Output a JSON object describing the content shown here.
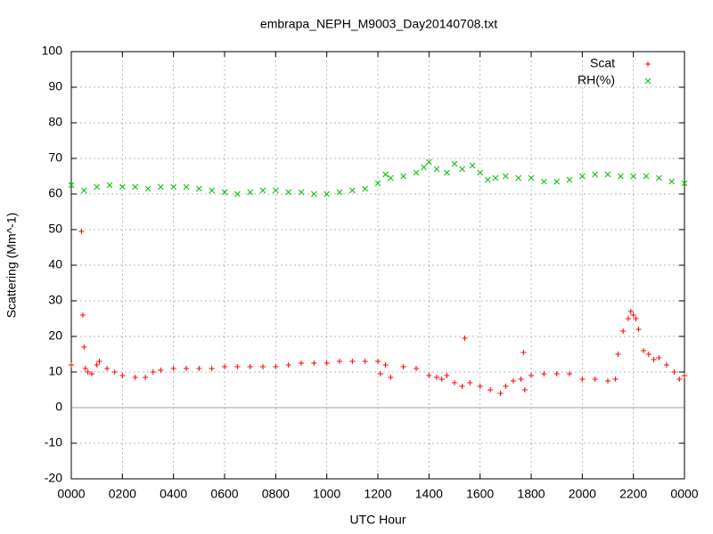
{
  "chart_data": {
    "type": "scatter",
    "title": "embrapa_NEPH_M9003_Day20140708.txt",
    "x_label": "UTC Hour",
    "y_label": "Scattering (Mm^-1)",
    "xlim": [
      0,
      24
    ],
    "ylim": [
      -20,
      100
    ],
    "xticks": [
      {
        "value": 0,
        "label": "0000"
      },
      {
        "value": 2,
        "label": "0200"
      },
      {
        "value": 4,
        "label": "0400"
      },
      {
        "value": 6,
        "label": "0600"
      },
      {
        "value": 8,
        "label": "0800"
      },
      {
        "value": 10,
        "label": "1000"
      },
      {
        "value": 12,
        "label": "1200"
      },
      {
        "value": 14,
        "label": "1400"
      },
      {
        "value": 16,
        "label": "1600"
      },
      {
        "value": 18,
        "label": "1800"
      },
      {
        "value": 20,
        "label": "2000"
      },
      {
        "value": 22,
        "label": "2200"
      },
      {
        "value": 24,
        "label": "0000"
      }
    ],
    "yticks": [
      -20,
      -10,
      0,
      10,
      20,
      30,
      40,
      50,
      60,
      70,
      80,
      90,
      100
    ],
    "grid": true,
    "zeroaxis": true,
    "legend": "top-right",
    "series": [
      {
        "name": "Scat",
        "color": "#ff0000",
        "marker": "plus",
        "x": [
          0,
          0.4,
          0.45,
          0.5,
          0.55,
          0.65,
          0.8,
          1.0,
          1.1,
          1.4,
          1.7,
          2.0,
          2.5,
          2.9,
          3.2,
          3.5,
          4.0,
          4.5,
          5.0,
          5.5,
          6.0,
          6.5,
          7.0,
          7.5,
          8.0,
          8.5,
          9.0,
          9.5,
          10.0,
          10.5,
          11.0,
          11.5,
          12.0,
          12.1,
          12.3,
          12.5,
          13.0,
          13.5,
          14.0,
          14.3,
          14.5,
          14.7,
          15.0,
          15.3,
          15.4,
          15.6,
          16.0,
          16.4,
          16.8,
          17.0,
          17.3,
          17.6,
          17.7,
          17.75,
          18.0,
          18.5,
          19.0,
          19.5,
          20.0,
          20.5,
          21.0,
          21.3,
          21.4,
          21.6,
          21.8,
          21.9,
          22.0,
          22.1,
          22.2,
          22.4,
          22.6,
          22.8,
          23.0,
          23.3,
          23.6,
          23.8,
          24.0
        ],
        "values": [
          12,
          49.5,
          26,
          17,
          11,
          10,
          9.5,
          12,
          13,
          11,
          10,
          9,
          8.5,
          8.5,
          10,
          10.5,
          11,
          11,
          11,
          11,
          11.5,
          11.5,
          11.5,
          11.5,
          11.5,
          12,
          12.5,
          12.5,
          12.5,
          13,
          13,
          13,
          13,
          9.5,
          12,
          8.5,
          11.5,
          11,
          9,
          8.5,
          8,
          9,
          7,
          6,
          19.5,
          7,
          6,
          5,
          4,
          6,
          7.5,
          8,
          15.5,
          5,
          9,
          9.5,
          9.5,
          9.5,
          8,
          8,
          7.5,
          8,
          15,
          21.5,
          25,
          27,
          26,
          25,
          22,
          16,
          15,
          13.5,
          14,
          12,
          10,
          8,
          9
        ]
      },
      {
        "name": "RH(%)",
        "color": "#00c000",
        "marker": "cross",
        "x": [
          0,
          0.5,
          1.0,
          1.5,
          2.0,
          2.5,
          3.0,
          3.5,
          4.0,
          4.5,
          5.0,
          5.5,
          6.0,
          6.5,
          7.0,
          7.5,
          8.0,
          8.5,
          9.0,
          9.5,
          10.0,
          10.5,
          11.0,
          11.5,
          12.0,
          12.3,
          12.5,
          13.0,
          13.5,
          13.8,
          14.0,
          14.3,
          14.7,
          15.0,
          15.3,
          15.7,
          16.0,
          16.3,
          16.6,
          17.0,
          17.5,
          18.0,
          18.5,
          19.0,
          19.5,
          20.0,
          20.5,
          21.0,
          21.5,
          22.0,
          22.5,
          23.0,
          23.5,
          24.0
        ],
        "values": [
          62.5,
          61,
          62,
          62.5,
          62,
          62,
          61.5,
          62,
          62,
          62,
          61.5,
          61,
          60.5,
          60,
          60.5,
          61,
          61,
          60.5,
          60.5,
          60,
          60,
          60.5,
          61,
          61.5,
          63,
          65.5,
          64.5,
          65,
          66,
          67.5,
          69,
          67,
          66,
          68.5,
          67,
          68,
          66,
          64,
          64.5,
          65,
          64.5,
          64.5,
          63.5,
          63.5,
          64,
          65,
          65.5,
          65.5,
          65,
          65,
          65,
          64.5,
          63.5,
          63
        ]
      }
    ]
  }
}
